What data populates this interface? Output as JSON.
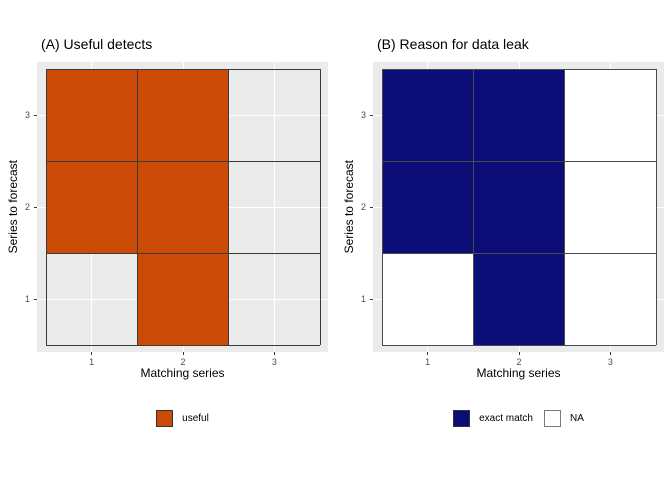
{
  "page": {
    "background": "#FFFFFF"
  },
  "chart_data": [
    {
      "type": "heatmap",
      "panel": "A",
      "title": "(A) Useful detects",
      "xlabel": "Matching series",
      "ylabel": "Series to forecast",
      "x_ticks": [
        "1",
        "2",
        "3"
      ],
      "y_ticks": [
        "1",
        "2",
        "3"
      ],
      "x_range": [
        0.5,
        3.5
      ],
      "y_range": [
        0.5,
        3.5
      ],
      "grid": "on",
      "legend_position": "bottom",
      "cells": [
        {
          "x": 1,
          "y": 3,
          "value": "useful"
        },
        {
          "x": 2,
          "y": 3,
          "value": "useful"
        },
        {
          "x": 3,
          "y": 3,
          "value": null
        },
        {
          "x": 1,
          "y": 2,
          "value": "useful"
        },
        {
          "x": 2,
          "y": 2,
          "value": "useful"
        },
        {
          "x": 3,
          "y": 2,
          "value": null
        },
        {
          "x": 1,
          "y": 1,
          "value": null
        },
        {
          "x": 2,
          "y": 1,
          "value": "useful"
        },
        {
          "x": 3,
          "y": 1,
          "value": null
        }
      ],
      "colors": {
        "useful": "#CB4A06"
      },
      "na_fill": "transparent",
      "legend": [
        {
          "label": "useful",
          "color": "#CB4A06",
          "border": "#333333"
        }
      ],
      "style": {
        "panel_bg": "#EBEBEB",
        "gridline": "#FFFFFF",
        "tile_border": "#3A3A3A",
        "tick_color": "#333333",
        "tick_label_color": "#4D4D4D"
      }
    },
    {
      "type": "heatmap",
      "panel": "B",
      "title": "(B) Reason for data leak",
      "xlabel": "Matching series",
      "ylabel": "Series to forecast",
      "x_ticks": [
        "1",
        "2",
        "3"
      ],
      "y_ticks": [
        "1",
        "2",
        "3"
      ],
      "x_range": [
        0.5,
        3.5
      ],
      "y_range": [
        0.5,
        3.5
      ],
      "grid": "on",
      "legend_position": "bottom",
      "cells": [
        {
          "x": 1,
          "y": 3,
          "value": "exact match"
        },
        {
          "x": 2,
          "y": 3,
          "value": "exact match"
        },
        {
          "x": 3,
          "y": 3,
          "value": "NA"
        },
        {
          "x": 1,
          "y": 2,
          "value": "exact match"
        },
        {
          "x": 2,
          "y": 2,
          "value": "exact match"
        },
        {
          "x": 3,
          "y": 2,
          "value": "NA"
        },
        {
          "x": 1,
          "y": 1,
          "value": "NA"
        },
        {
          "x": 2,
          "y": 1,
          "value": "exact match"
        },
        {
          "x": 3,
          "y": 1,
          "value": "NA"
        }
      ],
      "colors": {
        "exact match": "#0D0D78",
        "NA": "#FFFFFF"
      },
      "na_fill": "#FFFFFF",
      "legend": [
        {
          "label": "exact match",
          "color": "#0D0D78",
          "border": "#333333"
        },
        {
          "label": "NA",
          "color": "#FFFFFF",
          "border": "#7A7A7A"
        }
      ],
      "style": {
        "panel_bg": "#EBEBEB",
        "gridline": "#FFFFFF",
        "tile_border": "#4A4A4A",
        "tick_color": "#333333",
        "tick_label_color": "#4D4D4D"
      }
    }
  ]
}
